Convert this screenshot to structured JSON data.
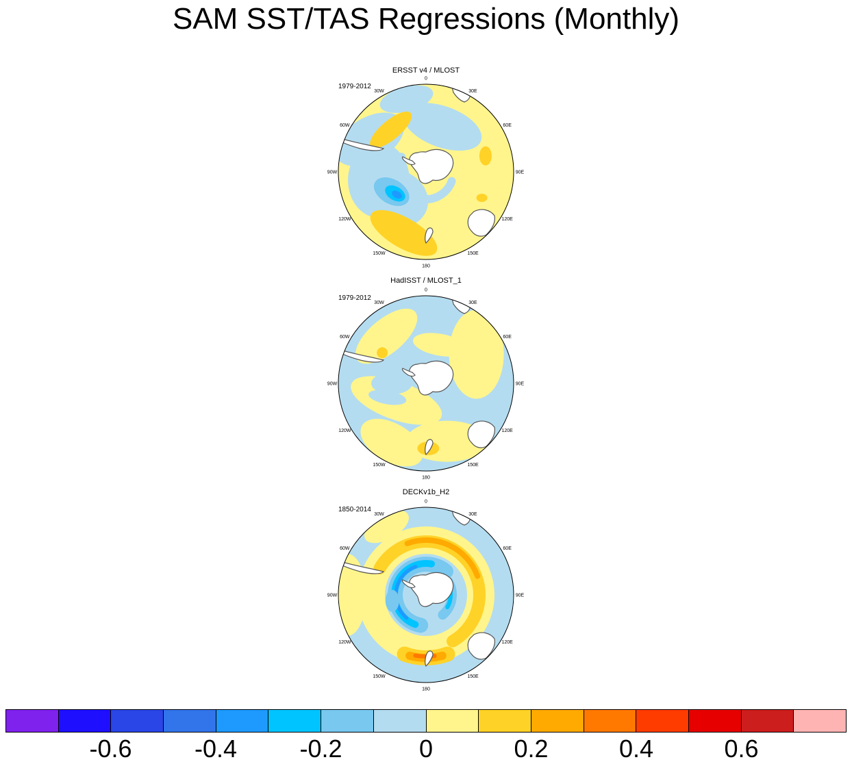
{
  "title": "SAM SST/TAS Regressions (Monthly)",
  "colors": {
    "ocean_default": "#b4dcf0",
    "land_mask": "#ffffff",
    "coast": "#555555"
  },
  "longitude_labels": [
    "0",
    "30E",
    "60E",
    "90E",
    "120E",
    "150E",
    "180",
    "150W",
    "120W",
    "90W",
    "60W",
    "30W"
  ],
  "panels": [
    {
      "title": "ERSST v4 / MLOST",
      "period": "1979-2012",
      "pattern": "ersst"
    },
    {
      "title": "HadISST / MLOST_1",
      "period": "1979-2012",
      "pattern": "hadisst"
    },
    {
      "title": "DECKv1b_H2",
      "period": "1850-2014",
      "pattern": "deck"
    }
  ],
  "colorbar": {
    "colors": [
      "#7f22ee",
      "#1e10ff",
      "#2a46e6",
      "#3274ea",
      "#1e9aff",
      "#00c4ff",
      "#78c8f0",
      "#b4dcf0",
      "#fff58c",
      "#ffd228",
      "#ffaa00",
      "#ff7800",
      "#ff3c00",
      "#e60000",
      "#cd1e1e",
      "#ffb4b4"
    ],
    "labels": [
      "-0.6",
      "-0.4",
      "-0.2",
      "0",
      "0.2",
      "0.4",
      "0.6"
    ],
    "label_values": [
      -0.6,
      -0.4,
      -0.2,
      0,
      0.2,
      0.4,
      0.6
    ],
    "min": -0.8,
    "max": 0.8
  }
}
